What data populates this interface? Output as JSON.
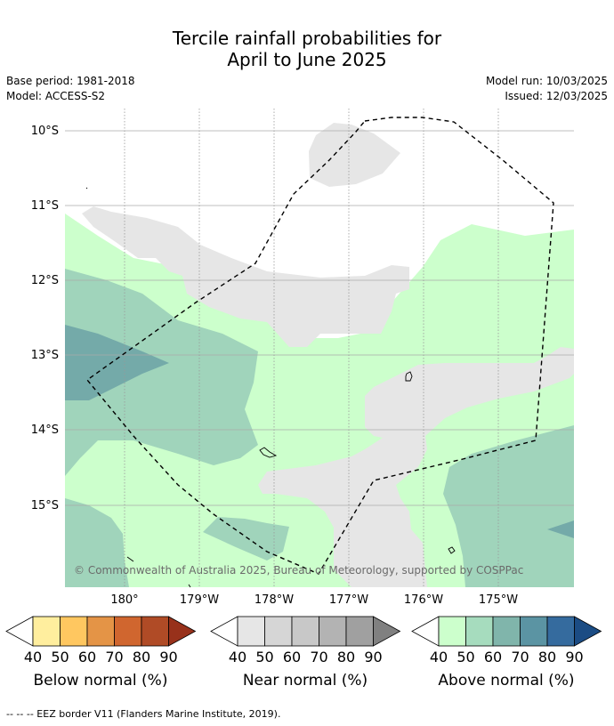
{
  "title_line1": "Tercile rainfall probabilities for",
  "title_line2": "April to June 2025",
  "meta": {
    "base_period": "Base period: 1981-2018",
    "model": "Model: ACCESS-S2",
    "model_run": "Model run: 10/03/2025",
    "issued": "Issued: 12/03/2025"
  },
  "map": {
    "lat_labels": [
      "10°S",
      "11°S",
      "12°S",
      "13°S",
      "14°S",
      "15°S"
    ],
    "lon_labels": [
      "180°",
      "179°W",
      "178°W",
      "177°W",
      "176°W",
      "175°W"
    ],
    "copyright": "© Commonwealth of Australia 2025, Bureau of Meteorology, supported by COSPPac",
    "colors": {
      "near_40": "#e6e6e6",
      "above_40": "#ccffcc",
      "above_50": "#a0d4bb",
      "above_60": "#74aaa9",
      "land_outline": "#000000"
    }
  },
  "colorbars": {
    "ticks": [
      "40",
      "50",
      "60",
      "70",
      "80",
      "90"
    ],
    "below": {
      "title": "Below normal (%)",
      "colors": [
        "#ffee9e",
        "#ffc760",
        "#e49446",
        "#d0662f",
        "#b04b26",
        "#98311b"
      ]
    },
    "near": {
      "title": "Near normal (%)",
      "colors": [
        "#e6e6e6",
        "#d6d6d6",
        "#c8c8c8",
        "#b3b3b3",
        "#a0a0a0",
        "#808080"
      ]
    },
    "above": {
      "title": "Above normal (%)",
      "colors": [
        "#ccffcc",
        "#a6dcbe",
        "#80b5ab",
        "#5b94a3",
        "#356b9e",
        "#1b4c84"
      ]
    }
  },
  "footnote": "--  --  -- EEZ border V11 (Flanders Marine Institute, 2019)."
}
